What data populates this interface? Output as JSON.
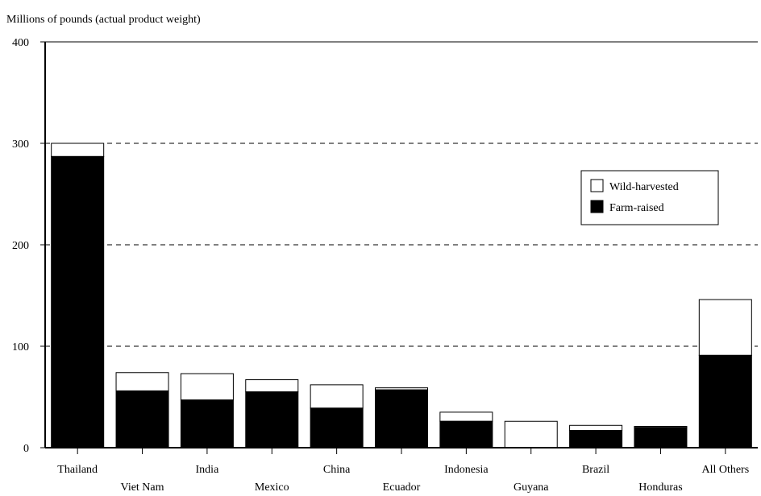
{
  "chart_data": {
    "type": "bar",
    "stacked": true,
    "title": "",
    "ylabel": "Millions of pounds (actual product weight)",
    "xlabel": "",
    "ylim": [
      0,
      400
    ],
    "yticks": [
      0,
      100,
      200,
      300,
      400
    ],
    "grid": "horizontal dashed",
    "legend_position": "right",
    "categories": [
      "Thailand",
      "Viet Nam",
      "India",
      "Mexico",
      "China",
      "Ecuador",
      "Indonesia",
      "Guyana",
      "Brazil",
      "Honduras",
      "All Others"
    ],
    "series": [
      {
        "name": "Farm-raised",
        "color": "#000000",
        "values": [
          287,
          56,
          47,
          55,
          39,
          57,
          26,
          0,
          17,
          20,
          91
        ]
      },
      {
        "name": "Wild-harvested",
        "color": "#ffffff",
        "values": [
          13,
          18,
          26,
          12,
          23,
          2,
          9,
          26,
          5,
          1,
          55
        ]
      }
    ],
    "legend": [
      {
        "name": "Wild-harvested",
        "color": "#ffffff"
      },
      {
        "name": "Farm-raised",
        "color": "#000000"
      }
    ]
  }
}
